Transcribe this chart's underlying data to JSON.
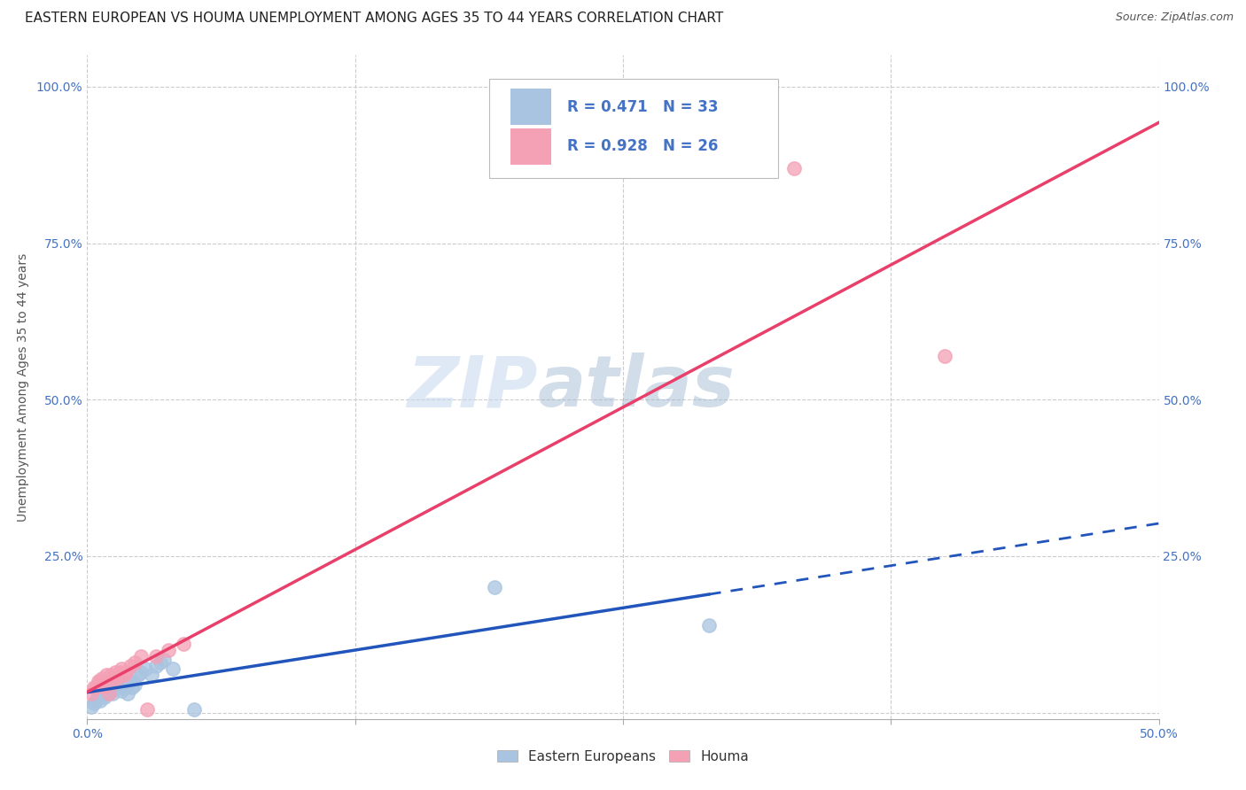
{
  "title": "EASTERN EUROPEAN VS HOUMA UNEMPLOYMENT AMONG AGES 35 TO 44 YEARS CORRELATION CHART",
  "source": "Source: ZipAtlas.com",
  "ylabel": "Unemployment Among Ages 35 to 44 years",
  "xlim": [
    0.0,
    0.5
  ],
  "ylim": [
    -0.01,
    1.05
  ],
  "x_ticks": [
    0.0,
    0.125,
    0.25,
    0.375,
    0.5
  ],
  "y_ticks": [
    0.0,
    0.25,
    0.5,
    0.75,
    1.0
  ],
  "eastern_european_color": "#a8c4e0",
  "houma_color": "#f4a0b5",
  "eastern_european_line_color": "#2255bb",
  "houma_line_color": "#e8406a",
  "watermark_zip": "ZIP",
  "watermark_atlas": "atlas",
  "legend_R_eastern": "R = 0.471",
  "legend_N_eastern": "N = 33",
  "legend_R_houma": "R = 0.928",
  "legend_N_houma": "N = 26",
  "eastern_european_x": [
    0.002,
    0.003,
    0.004,
    0.005,
    0.005,
    0.006,
    0.007,
    0.008,
    0.009,
    0.01,
    0.011,
    0.012,
    0.013,
    0.014,
    0.015,
    0.016,
    0.017,
    0.018,
    0.019,
    0.02,
    0.021,
    0.022,
    0.024,
    0.025,
    0.027,
    0.03,
    0.032,
    0.034,
    0.036,
    0.04,
    0.05,
    0.19,
    0.29
  ],
  "eastern_european_y": [
    0.01,
    0.015,
    0.02,
    0.025,
    0.03,
    0.02,
    0.03,
    0.025,
    0.03,
    0.04,
    0.035,
    0.03,
    0.04,
    0.04,
    0.05,
    0.035,
    0.04,
    0.04,
    0.03,
    0.05,
    0.04,
    0.045,
    0.06,
    0.065,
    0.07,
    0.06,
    0.075,
    0.08,
    0.085,
    0.07,
    0.005,
    0.2,
    0.14
  ],
  "houma_x": [
    0.002,
    0.003,
    0.004,
    0.005,
    0.006,
    0.007,
    0.008,
    0.009,
    0.01,
    0.011,
    0.012,
    0.013,
    0.014,
    0.015,
    0.016,
    0.017,
    0.018,
    0.02,
    0.022,
    0.025,
    0.028,
    0.032,
    0.038,
    0.045,
    0.33,
    0.4
  ],
  "houma_y": [
    0.03,
    0.04,
    0.04,
    0.05,
    0.05,
    0.055,
    0.04,
    0.06,
    0.03,
    0.06,
    0.055,
    0.065,
    0.055,
    0.065,
    0.07,
    0.06,
    0.065,
    0.075,
    0.08,
    0.09,
    0.005,
    0.09,
    0.1,
    0.11,
    0.87,
    0.57
  ],
  "title_fontsize": 11,
  "axis_label_fontsize": 10,
  "tick_fontsize": 10
}
